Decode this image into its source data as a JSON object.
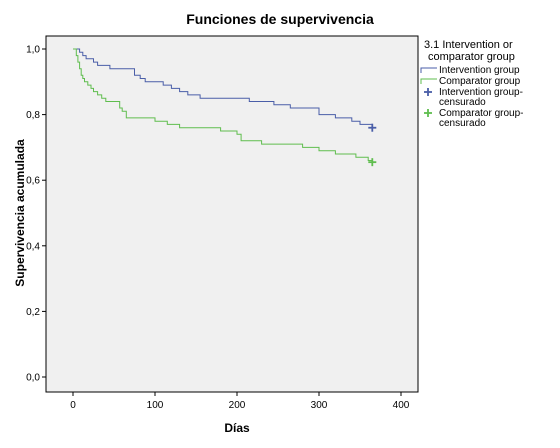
{
  "chart_data": {
    "type": "line",
    "title": "Funciones de supervivencia",
    "xlabel": "Días",
    "ylabel": "Supervivencia acumulada",
    "xlim": [
      0,
      400
    ],
    "ylim": [
      0,
      1
    ],
    "x_ticks": [
      0,
      100,
      200,
      300,
      400
    ],
    "y_ticks": [
      {
        "value": 0.0,
        "label": "0,0"
      },
      {
        "value": 0.2,
        "label": "0,2"
      },
      {
        "value": 0.4,
        "label": "0,4"
      },
      {
        "value": 0.6,
        "label": "0,6"
      },
      {
        "value": 0.8,
        "label": "0,8"
      },
      {
        "value": 1.0,
        "label": "1,0"
      }
    ],
    "grid": false,
    "step": true,
    "background_color": "#f0f0f0",
    "legend": {
      "position": "right",
      "title_lines": [
        "3.1  Intervention or",
        "comparator group"
      ],
      "entries": [
        {
          "label_lines": [
            "Intervention group"
          ],
          "symbol": "line",
          "color": "#4a5ea8"
        },
        {
          "label_lines": [
            "Comparator group"
          ],
          "symbol": "line",
          "color": "#5fbd4e"
        },
        {
          "label_lines": [
            "Intervention group-",
            "censurado"
          ],
          "symbol": "plus",
          "color": "#4a5ea8"
        },
        {
          "label_lines": [
            "Comparator group-",
            "censurado"
          ],
          "symbol": "plus",
          "color": "#5fbd4e"
        }
      ]
    },
    "series": [
      {
        "name": "Intervention group",
        "color": "#4a5ea8",
        "x": [
          0,
          8,
          12,
          16,
          20,
          25,
          30,
          36,
          40,
          45,
          52,
          60,
          75,
          82,
          88,
          95,
          110,
          120,
          130,
          140,
          155,
          180,
          200,
          215,
          235,
          245,
          265,
          300,
          320,
          340,
          350,
          365
        ],
        "y": [
          1.0,
          0.99,
          0.98,
          0.97,
          0.97,
          0.96,
          0.95,
          0.95,
          0.95,
          0.94,
          0.94,
          0.94,
          0.92,
          0.91,
          0.9,
          0.9,
          0.89,
          0.88,
          0.87,
          0.86,
          0.85,
          0.85,
          0.85,
          0.84,
          0.84,
          0.83,
          0.82,
          0.8,
          0.79,
          0.78,
          0.77,
          0.76
        ],
        "censored": [
          {
            "x": 365,
            "y": 0.76
          }
        ]
      },
      {
        "name": "Comparator group",
        "color": "#5fbd4e",
        "x": [
          0,
          4,
          6,
          8,
          10,
          12,
          14,
          18,
          22,
          25,
          30,
          35,
          40,
          50,
          57,
          60,
          65,
          80,
          100,
          115,
          130,
          150,
          180,
          200,
          205,
          230,
          255,
          280,
          300,
          320,
          330,
          345,
          360,
          365
        ],
        "y": [
          1.0,
          0.98,
          0.96,
          0.94,
          0.92,
          0.91,
          0.9,
          0.89,
          0.88,
          0.87,
          0.86,
          0.85,
          0.84,
          0.84,
          0.82,
          0.81,
          0.79,
          0.79,
          0.78,
          0.77,
          0.76,
          0.76,
          0.75,
          0.74,
          0.72,
          0.71,
          0.71,
          0.7,
          0.69,
          0.68,
          0.68,
          0.67,
          0.66,
          0.655
        ],
        "censored": [
          {
            "x": 365,
            "y": 0.655
          }
        ]
      }
    ]
  }
}
